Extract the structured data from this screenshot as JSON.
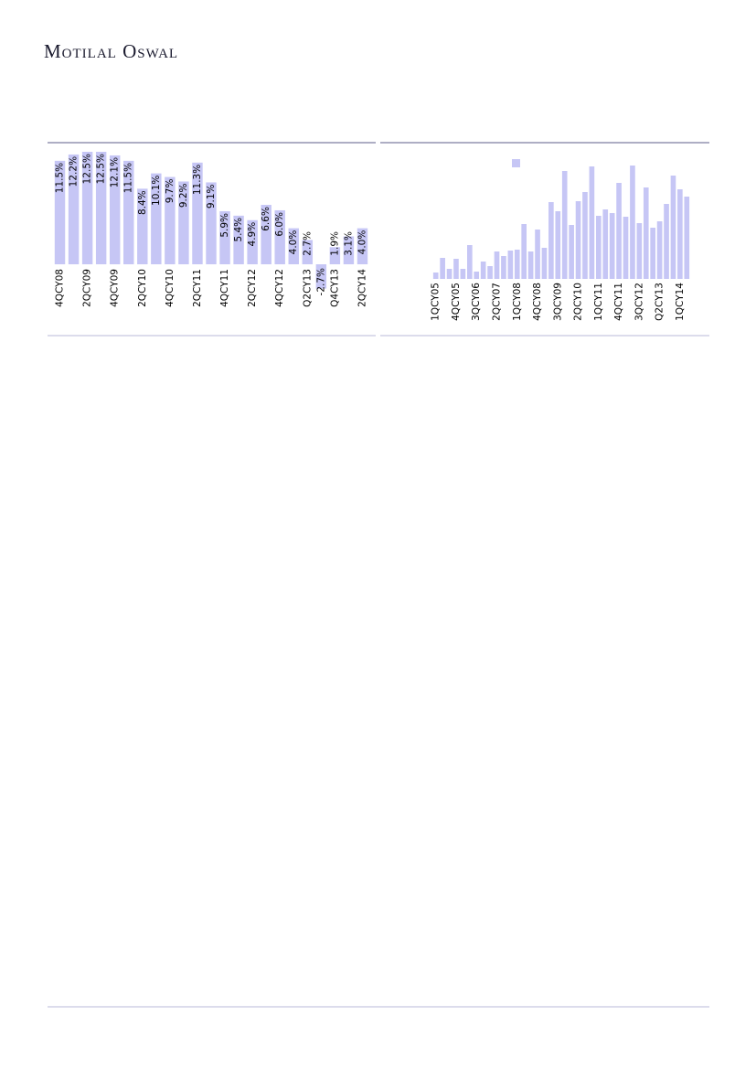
{
  "header": {
    "logo": "Motilal Oswal"
  },
  "chart_data": [
    {
      "type": "bar",
      "color": "#c6c6f5",
      "categories": [
        "4QCY08",
        null,
        "2QCY09",
        null,
        "4QCY09",
        null,
        "2QCY10",
        null,
        "4QCY10",
        null,
        "2QCY11",
        null,
        "4QCY11",
        null,
        "2QCY12",
        null,
        "4QCY12",
        null,
        "Q2CY13",
        null,
        "Q4CY13",
        null,
        "2QCY14"
      ],
      "values": [
        11.5,
        12.2,
        12.5,
        12.5,
        12.1,
        11.5,
        8.4,
        10.1,
        9.7,
        9.2,
        11.3,
        9.1,
        5.9,
        5.4,
        4.9,
        6.6,
        6.0,
        4.0,
        2.7,
        -2.7,
        1.9,
        3.1,
        4.0
      ],
      "value_labels": [
        "11.5%",
        "12.2%",
        "12.5%",
        "12.5%",
        "12.1%",
        "11.5%",
        "8.4%",
        "10.1%",
        "9.7%",
        "9.2%",
        "11.3%",
        "9.1%",
        "5.9%",
        "5.4%",
        "4.9%",
        "6.6%",
        "6.0%",
        "4.0%",
        "2.7%",
        "-2.7%",
        "1.9%",
        "3.1%",
        "4.0%"
      ]
    },
    {
      "type": "bar",
      "color": "#c6c6f5",
      "categories": [
        "1QCY05",
        null,
        null,
        "4QCY05",
        null,
        null,
        "3QCY06",
        null,
        null,
        "2QCY07",
        null,
        null,
        "1QCY08",
        null,
        null,
        "4QCY08",
        null,
        null,
        "3QCY09",
        null,
        null,
        "2QCY10",
        null,
        null,
        "1QCY11",
        null,
        null,
        "4QCY11",
        null,
        null,
        "3QCY12",
        null,
        null,
        "Q2CY13",
        null,
        null,
        "1QCY14",
        null
      ],
      "values": [
        7,
        23,
        11,
        22,
        11,
        37,
        8,
        19,
        14,
        30,
        25,
        31,
        32,
        60,
        30,
        54,
        34,
        84,
        74,
        118,
        59,
        85,
        95,
        123,
        69,
        76,
        72,
        105,
        68,
        124,
        61,
        100,
        56,
        63,
        82,
        113,
        98,
        90
      ]
    }
  ]
}
